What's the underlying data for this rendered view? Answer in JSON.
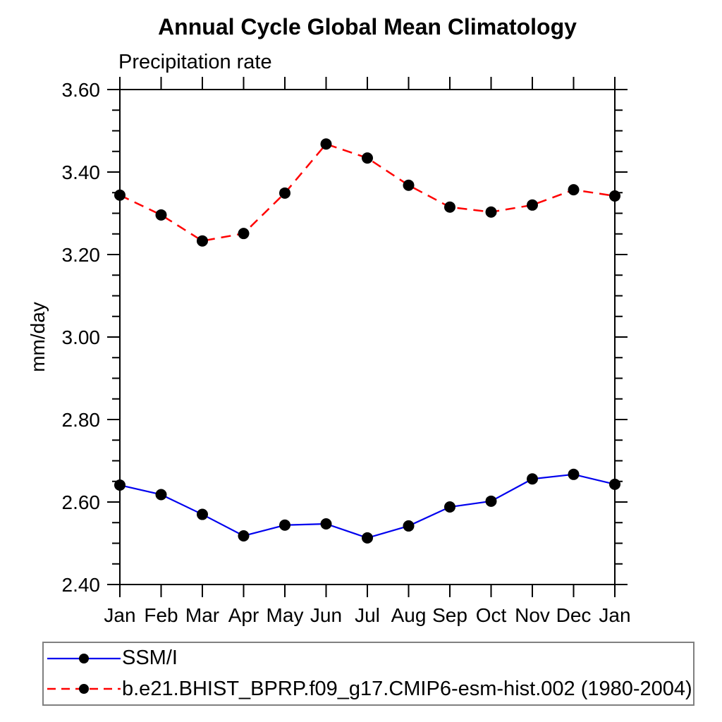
{
  "chart_data": {
    "type": "line",
    "title": "Annual Cycle Global Mean Climatology",
    "subtitle": "Precipitation rate",
    "xlabel": "",
    "ylabel": "mm/day",
    "categories": [
      "Jan",
      "Feb",
      "Mar",
      "Apr",
      "May",
      "Jun",
      "Jul",
      "Aug",
      "Sep",
      "Oct",
      "Nov",
      "Dec",
      "Jan"
    ],
    "ylim": [
      2.4,
      3.6
    ],
    "ytick_major_step": 0.2,
    "ytick_minor_step": 0.05,
    "ytick_labels": [
      "2.40",
      "2.60",
      "2.80",
      "3.00",
      "3.20",
      "3.40",
      "3.60"
    ],
    "grid": false,
    "legend_position": "bottom-left-box",
    "series": [
      {
        "name": "SSM/I",
        "color": "#0000ee",
        "style": "solid",
        "marker": "black-dot",
        "values": [
          2.641,
          2.618,
          2.57,
          2.518,
          2.544,
          2.547,
          2.513,
          2.542,
          2.588,
          2.602,
          2.656,
          2.667,
          2.643
        ]
      },
      {
        "name": "b.e21.BHIST_BPRP.f09_g17.CMIP6-esm-hist.002 (1980-2004)",
        "color": "#ff0000",
        "style": "dashed",
        "marker": "black-dot",
        "values": [
          3.344,
          3.296,
          3.233,
          3.251,
          3.349,
          3.468,
          3.434,
          3.368,
          3.315,
          3.303,
          3.32,
          3.357,
          3.342
        ]
      }
    ]
  },
  "style": {
    "marker_color": "#000000",
    "axis_color": "#000000",
    "legend_border_color": "#808080"
  }
}
